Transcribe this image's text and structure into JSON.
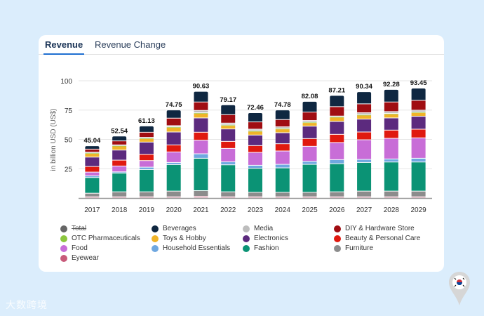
{
  "tabs": [
    {
      "label": "Revenue",
      "active": true
    },
    {
      "label": "Revenue Change",
      "active": false
    }
  ],
  "watermark": "大数跨境",
  "flag_icon": "south-korea-flag-pin-icon",
  "chart_data": {
    "type": "bar",
    "stacked": true,
    "ylabel": "in billion USD (US$)",
    "xlabel": "",
    "ylim": [
      0,
      100
    ],
    "yticks": [
      25,
      50,
      75,
      100
    ],
    "grid": true,
    "legend_position": "bottom",
    "categories": [
      "2017",
      "2018",
      "2019",
      "2020",
      "2021",
      "2022",
      "2023",
      "2024",
      "2025",
      "2026",
      "2027",
      "2028",
      "2029"
    ],
    "totals": [
      "45.04",
      "52.54",
      "61.13",
      "74.75",
      "90.63",
      "79.17",
      "72.46",
      "74.78",
      "82.08",
      "87.21",
      "90.34",
      "92.28",
      "93.45"
    ],
    "legend": [
      {
        "name": "Total",
        "color": "#666666",
        "hidden": true
      },
      {
        "name": "Beverages",
        "color": "#0f2741"
      },
      {
        "name": "Media",
        "color": "#bdbdbd"
      },
      {
        "name": "DIY & Hardware Store",
        "color": "#a00d12"
      },
      {
        "name": "OTC Pharmaceuticals",
        "color": "#8cc63f"
      },
      {
        "name": "Toys & Hobby",
        "color": "#f0b429"
      },
      {
        "name": "Electronics",
        "color": "#5c2a7e"
      },
      {
        "name": "Beauty & Personal Care",
        "color": "#e0190f"
      },
      {
        "name": "Food",
        "color": "#c86dd7"
      },
      {
        "name": "Household Essentials",
        "color": "#6fa8e0"
      },
      {
        "name": "Fashion",
        "color": "#0b9375"
      },
      {
        "name": "Furniture",
        "color": "#8c8c8c"
      },
      {
        "name": "Eyewear",
        "color": "#c85a7a"
      }
    ],
    "series": [
      {
        "name": "Eyewear",
        "color": "#c85a7a",
        "values": [
          0.8,
          0.8,
          0.8,
          0.8,
          1.2,
          0.8,
          0.8,
          0.8,
          0.8,
          0.8,
          0.8,
          0.8,
          0.8
        ]
      },
      {
        "name": "Furniture",
        "color": "#8c8c8c",
        "values": [
          3.0,
          4.2,
          4.2,
          4.8,
          4.8,
          4.2,
          3.8,
          3.8,
          3.8,
          4.2,
          4.8,
          4.8,
          4.8
        ]
      },
      {
        "name": "Fashion",
        "color": "#0b9375",
        "values": [
          13.4,
          16,
          19,
          22.6,
          27.6,
          23,
          20.4,
          20.8,
          23.8,
          24,
          24.4,
          24.8,
          24.8
        ]
      },
      {
        "name": "Household Essentials",
        "color": "#6fa8e0",
        "values": [
          1.4,
          1,
          2,
          1.8,
          3.8,
          2.6,
          2.6,
          3,
          2.6,
          3.4,
          2.6,
          2.6,
          3.2
        ]
      },
      {
        "name": "Food",
        "color": "#c86dd7",
        "values": [
          3.2,
          5,
          5.6,
          9,
          11.6,
          11.4,
          11,
          11.4,
          12.8,
          14.6,
          16.8,
          17.6,
          17.4
        ]
      },
      {
        "name": "Beauty & Personal Care",
        "color": "#e0190f",
        "values": [
          4.8,
          5,
          5.4,
          6,
          6.8,
          6,
          5.8,
          6.2,
          6.6,
          7,
          6.6,
          7,
          7.4
        ]
      },
      {
        "name": "Electronics",
        "color": "#5c2a7e",
        "values": [
          8,
          8.6,
          10.4,
          11,
          12.2,
          10.6,
          9,
          9.4,
          10.6,
          11,
          11,
          10.4,
          11
        ]
      },
      {
        "name": "Toys & Hobby",
        "color": "#f0b429",
        "values": [
          3.2,
          3.4,
          3,
          4,
          4,
          3,
          3.2,
          3.2,
          3,
          3.6,
          3.4,
          3.4,
          3.2
        ]
      },
      {
        "name": "OTC Pharmaceuticals",
        "color": "#8cc63f",
        "values": [
          0.4,
          0.4,
          0.4,
          0.4,
          0.4,
          0.4,
          0.4,
          0.4,
          0.4,
          0.4,
          0.4,
          0.4,
          0.4
        ]
      },
      {
        "name": "Media",
        "color": "#bdbdbd",
        "values": [
          0.6,
          0.6,
          0.6,
          1.0,
          2.0,
          1.6,
          1.4,
          1.4,
          1.4,
          0.6,
          1.6,
          1.6,
          1.6
        ]
      },
      {
        "name": "DIY & Hardware Store",
        "color": "#a00d12",
        "values": [
          2.6,
          3.4,
          4.4,
          6.4,
          7.2,
          7.2,
          6.2,
          6.2,
          7.2,
          8,
          7.6,
          8.2,
          8.4
        ]
      },
      {
        "name": "Beverages",
        "color": "#0f2741",
        "values": [
          2.84,
          4.14,
          5.33,
          6.95,
          9.03,
          8.37,
          7.86,
          8.18,
          9.08,
          9.61,
          10.34,
          10.68,
          10.45
        ]
      }
    ]
  }
}
